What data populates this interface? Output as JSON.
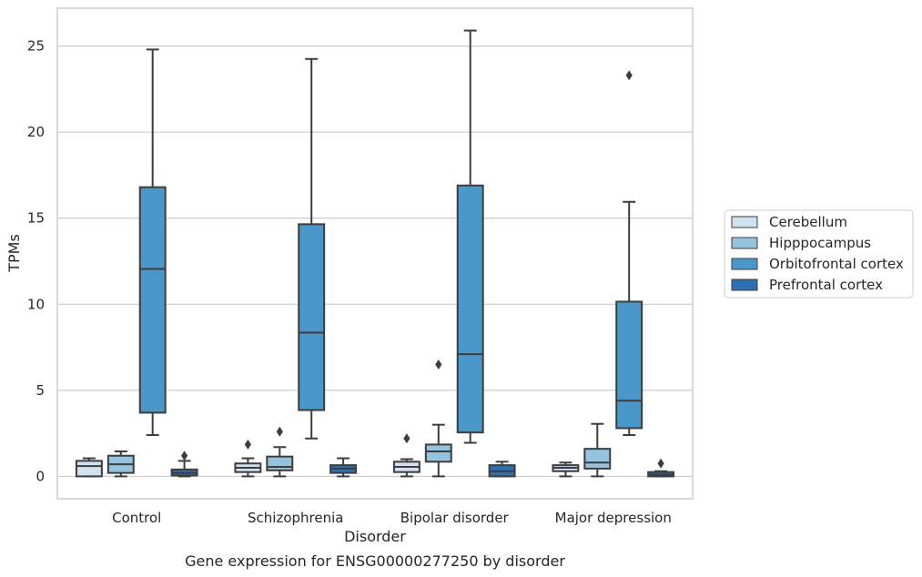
{
  "chart_data": {
    "type": "box",
    "title": "Gene expression for ENSG00000277250 by disorder",
    "xlabel": "Disorder",
    "ylabel": "TPMs",
    "ylim": [
      -1.3,
      27.2
    ],
    "yticks": [
      0,
      5,
      10,
      15,
      20,
      25
    ],
    "grid": true,
    "legend_position": "right",
    "categories": [
      "Control",
      "Schizophrenia",
      "Bipolar disorder",
      "Major depression"
    ],
    "series": [
      {
        "name": "Cerebellum",
        "color": "#d0e1f2",
        "boxes": [
          {
            "whislo": 0.0,
            "q1": 0.0,
            "med": 0.6,
            "q3": 0.9,
            "whishi": 1.05,
            "fliers": []
          },
          {
            "whislo": 0.0,
            "q1": 0.25,
            "med": 0.5,
            "q3": 0.75,
            "whishi": 1.05,
            "fliers": [
              1.85
            ]
          },
          {
            "whislo": 0.0,
            "q1": 0.25,
            "med": 0.55,
            "q3": 0.85,
            "whishi": 1.0,
            "fliers": [
              2.2
            ]
          },
          {
            "whislo": 0.0,
            "q1": 0.3,
            "med": 0.5,
            "q3": 0.65,
            "whishi": 0.8,
            "fliers": []
          }
        ]
      },
      {
        "name": "Hipppocampus",
        "color": "#94c4df",
        "boxes": [
          {
            "whislo": 0.0,
            "q1": 0.2,
            "med": 0.7,
            "q3": 1.2,
            "whishi": 1.45,
            "fliers": []
          },
          {
            "whislo": 0.0,
            "q1": 0.35,
            "med": 0.55,
            "q3": 1.15,
            "whishi": 1.7,
            "fliers": [
              2.6
            ]
          },
          {
            "whislo": 0.0,
            "q1": 0.85,
            "med": 1.45,
            "q3": 1.85,
            "whishi": 3.0,
            "fliers": [
              6.5
            ]
          },
          {
            "whislo": 0.0,
            "q1": 0.45,
            "med": 0.8,
            "q3": 1.6,
            "whishi": 3.05,
            "fliers": []
          }
        ]
      },
      {
        "name": "Orbitofrontal cortex",
        "color": "#4a98c9",
        "boxes": [
          {
            "whislo": 2.4,
            "q1": 3.7,
            "med": 12.05,
            "q3": 16.8,
            "whishi": 24.8,
            "fliers": []
          },
          {
            "whislo": 2.2,
            "q1": 3.85,
            "med": 8.35,
            "q3": 14.65,
            "whishi": 24.25,
            "fliers": []
          },
          {
            "whislo": 1.95,
            "q1": 2.55,
            "med": 7.1,
            "q3": 16.9,
            "whishi": 25.9,
            "fliers": []
          },
          {
            "whislo": 2.4,
            "q1": 2.8,
            "med": 4.4,
            "q3": 10.15,
            "whishi": 15.95,
            "fliers": [
              23.3
            ]
          }
        ]
      },
      {
        "name": "Prefrontal cortex",
        "color": "#2e6fb0",
        "boxes": [
          {
            "whislo": 0.0,
            "q1": 0.05,
            "med": 0.2,
            "q3": 0.4,
            "whishi": 0.9,
            "fliers": [
              1.2
            ]
          },
          {
            "whislo": 0.0,
            "q1": 0.2,
            "med": 0.45,
            "q3": 0.65,
            "whishi": 1.05,
            "fliers": []
          },
          {
            "whislo": 0.0,
            "q1": 0.0,
            "med": 0.3,
            "q3": 0.65,
            "whishi": 0.85,
            "fliers": []
          },
          {
            "whislo": 0.0,
            "q1": 0.0,
            "med": 0.1,
            "q3": 0.25,
            "whishi": 0.3,
            "fliers": [
              0.75
            ]
          }
        ]
      }
    ]
  }
}
